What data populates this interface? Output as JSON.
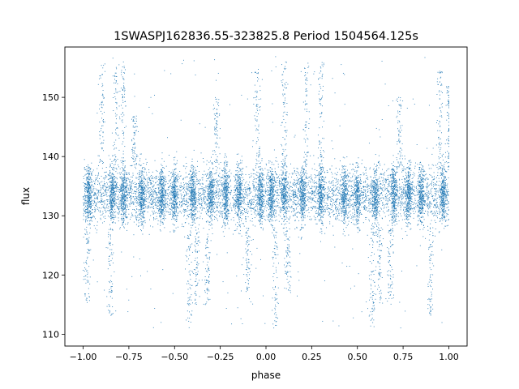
{
  "chart_data": {
    "type": "scatter",
    "title": "1SWASPJ162836.55-323825.8 Period 1504564.125s",
    "xlabel": "phase",
    "ylabel": "flux",
    "xlim": [
      -1.1,
      1.1
    ],
    "ylim": [
      108,
      158.5
    ],
    "xticks": [
      -1.0,
      -0.75,
      -0.5,
      -0.25,
      0.0,
      0.25,
      0.5,
      0.75,
      1.0
    ],
    "xtick_labels": [
      "−1.00",
      "−0.75",
      "−0.50",
      "−0.25",
      "0.00",
      "0.25",
      "0.50",
      "0.75",
      "1.00"
    ],
    "yticks": [
      110,
      120,
      130,
      140,
      150
    ],
    "ytick_labels": [
      "110",
      "120",
      "130",
      "140",
      "150"
    ],
    "grid": false,
    "legend": "none",
    "marker_color": "#1f77b4",
    "series": [
      {
        "phase_range": [
          -1.0,
          1.0
        ],
        "baseline_flux": 133.5,
        "core_flux_range": [
          126,
          140
        ],
        "full_flux_range": [
          111,
          157
        ],
        "folding": "mirrored about phase 0 (pattern repeats every 1.0 in phase)",
        "dense_clusters_phase": [
          -0.97,
          -0.84,
          -0.78,
          -0.68,
          -0.57,
          -0.5,
          -0.4,
          -0.3,
          -0.22,
          -0.15,
          -0.03,
          0.03,
          0.1,
          0.2,
          0.3,
          0.43,
          0.5,
          0.6,
          0.7,
          0.78,
          0.85,
          0.97
        ],
        "upward_excursions": [
          {
            "phase": -0.9,
            "flux_max": 156
          },
          {
            "phase": -0.82,
            "flux_max": 156
          },
          {
            "phase": -0.78,
            "flux_max": 156
          },
          {
            "phase": -0.72,
            "flux_max": 147
          },
          {
            "phase": -0.27,
            "flux_max": 150
          },
          {
            "phase": -0.05,
            "flux_max": 155
          },
          {
            "phase": 0.1,
            "flux_max": 156
          },
          {
            "phase": 0.22,
            "flux_max": 156
          },
          {
            "phase": 0.3,
            "flux_max": 156
          },
          {
            "phase": 0.73,
            "flux_max": 150
          },
          {
            "phase": 0.95,
            "flux_max": 155
          },
          {
            "phase": 1.0,
            "flux_max": 152
          }
        ],
        "downward_excursions": [
          {
            "phase": -0.98,
            "flux_min": 115
          },
          {
            "phase": -0.85,
            "flux_min": 113
          },
          {
            "phase": -0.42,
            "flux_min": 111
          },
          {
            "phase": -0.38,
            "flux_min": 115
          },
          {
            "phase": -0.32,
            "flux_min": 115
          },
          {
            "phase": -0.1,
            "flux_min": 117
          },
          {
            "phase": 0.05,
            "flux_min": 111
          },
          {
            "phase": 0.12,
            "flux_min": 117
          },
          {
            "phase": 0.58,
            "flux_min": 111
          },
          {
            "phase": 0.62,
            "flux_min": 115
          },
          {
            "phase": 0.68,
            "flux_min": 115
          },
          {
            "phase": 0.9,
            "flux_min": 113
          }
        ]
      }
    ]
  }
}
